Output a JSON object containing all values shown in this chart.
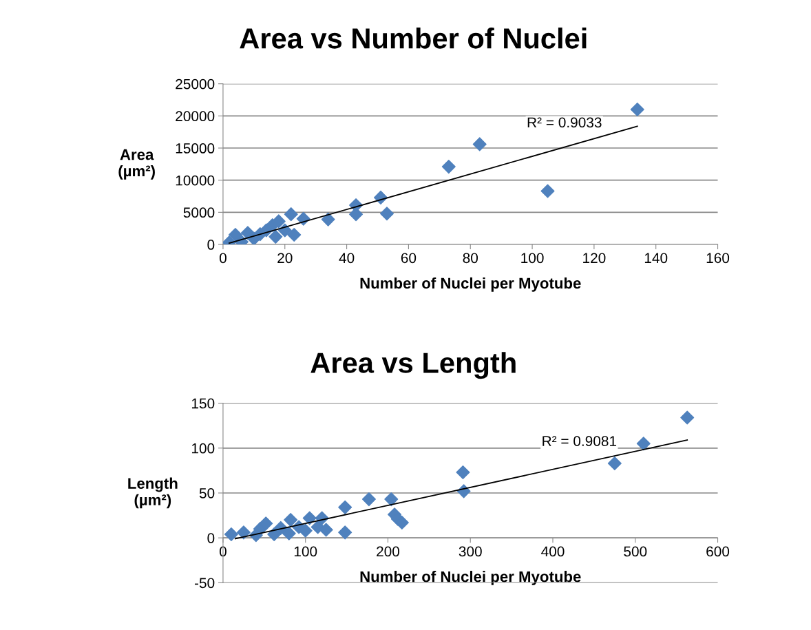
{
  "chart_data": [
    {
      "type": "scatter",
      "title": "Area vs Number of Nuclei",
      "xlabel": "Number of Nuclei per Myotube",
      "ylabel": "Area\n(µm²)",
      "xlim": [
        0,
        160
      ],
      "xticks": [
        0,
        20,
        40,
        60,
        80,
        100,
        120,
        140,
        160
      ],
      "ylim": [
        0,
        25000
      ],
      "yticks": [
        0,
        5000,
        10000,
        15000,
        20000,
        25000
      ],
      "grid": "y",
      "legend": false,
      "annotations": [
        "R² = 0.9033"
      ],
      "series": [
        {
          "type": "scatter",
          "marker": "diamond",
          "color": "#4f81bd",
          "x": [
            2,
            4,
            6,
            8,
            10,
            12,
            14,
            16,
            17,
            18,
            20,
            22,
            23,
            26,
            34,
            43,
            43,
            51,
            53,
            73,
            83,
            105,
            134
          ],
          "values": [
            300,
            1500,
            400,
            1800,
            900,
            1600,
            2200,
            3000,
            1200,
            3600,
            2200,
            4700,
            1500,
            4000,
            3900,
            6100,
            4700,
            7300,
            4800,
            12100,
            15600,
            8300,
            21000
          ]
        },
        {
          "type": "line",
          "marker": "none",
          "color": "#000000",
          "x": [
            2,
            134
          ],
          "values": [
            200,
            18400
          ]
        }
      ]
    },
    {
      "type": "scatter",
      "title": "Area vs Length",
      "xlabel": "Number of Nuclei per Myotube",
      "ylabel": "Length\n(µm²)",
      "xlim": [
        0,
        600
      ],
      "xticks": [
        0,
        100,
        200,
        300,
        400,
        500,
        600
      ],
      "ylim": [
        -50,
        150
      ],
      "yticks": [
        -50,
        0,
        50,
        100,
        150
      ],
      "grid": "y",
      "legend": false,
      "annotations": [
        "R² = 0.9081"
      ],
      "series": [
        {
          "type": "scatter",
          "marker": "diamond",
          "color": "#4f81bd",
          "x": [
            10,
            25,
            40,
            45,
            52,
            62,
            70,
            80,
            82,
            92,
            100,
            105,
            115,
            120,
            125,
            148,
            148,
            177,
            204,
            208,
            212,
            217,
            291,
            292,
            475,
            510,
            563
          ],
          "values": [
            4,
            6,
            3,
            10,
            16,
            4,
            11,
            5,
            20,
            12,
            8,
            22,
            12,
            22,
            9,
            34,
            6,
            43,
            43,
            26,
            21,
            17,
            73,
            52,
            83,
            105,
            134
          ]
        },
        {
          "type": "line",
          "marker": "none",
          "color": "#000000",
          "x": [
            15,
            563
          ],
          "values": [
            -1,
            109
          ]
        }
      ]
    }
  ]
}
